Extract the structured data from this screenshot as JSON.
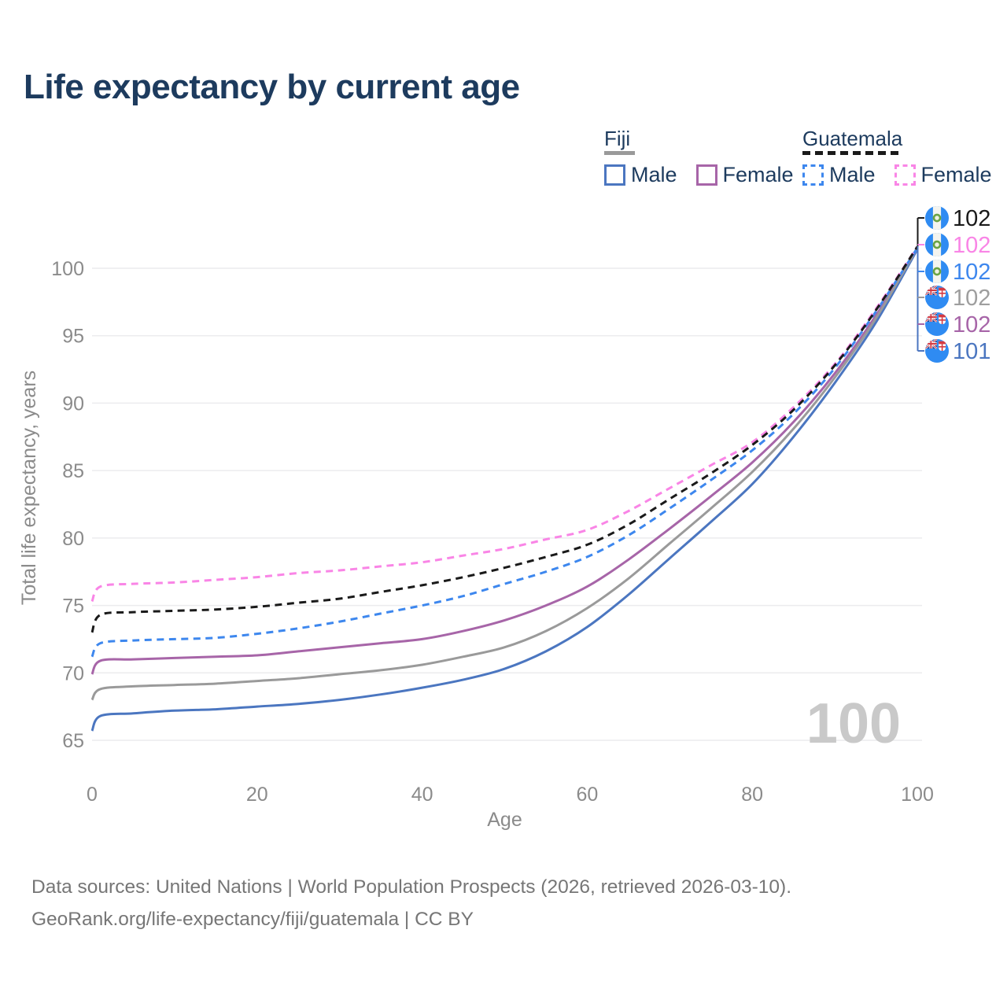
{
  "title": "Life expectancy by current age",
  "legend": {
    "fiji": {
      "name": "Fiji",
      "male": "Male",
      "female": "Female"
    },
    "guatemala": {
      "name": "Guatemala",
      "male": "Male",
      "female": "Female"
    }
  },
  "watermark": "100",
  "footer": {
    "line1": "Data sources: United Nations | World Population Prospects (2026, retrieved 2026-03-10).",
    "line2": "GeoRank.org/life-expectancy/fiji/guatemala | CC BY"
  },
  "colors": {
    "title_text": "#1d3b5e",
    "axis_text": "#8b8b8b",
    "gridline": "#ececee",
    "watermark": "#c9c9c9",
    "footer_text": "#767676",
    "flag_blue": "#2f8bf2",
    "flag_red": "#d43a42",
    "flag_navy": "#27408f",
    "flag_green": "#6aa344"
  },
  "chart_data": {
    "type": "line",
    "title": "Life expectancy by current age",
    "xlabel": "Age",
    "ylabel": "Total life expectancy, years",
    "xlim": [
      0,
      100
    ],
    "ylim": [
      65,
      100
    ],
    "xticks": [
      0,
      20,
      40,
      60,
      80,
      100
    ],
    "yticks": [
      65,
      70,
      75,
      80,
      85,
      90,
      95,
      100
    ],
    "grid": "horizontal",
    "legend_position": "top-right",
    "ages": [
      0,
      1,
      5,
      10,
      15,
      20,
      25,
      30,
      35,
      40,
      45,
      50,
      55,
      60,
      65,
      70,
      75,
      80,
      85,
      90,
      95,
      100
    ],
    "series": [
      {
        "name": "Guatemala Both sexes",
        "country": "Guatemala",
        "sex": "Both",
        "color": "#1a1a1a",
        "dashed": true,
        "flag": "guatemala",
        "end_label": "102",
        "label_color": "#1a1a1a",
        "values": [
          73.0,
          74.3,
          74.5,
          74.6,
          74.7,
          74.9,
          75.2,
          75.5,
          76.0,
          76.5,
          77.1,
          77.8,
          78.6,
          79.5,
          81.0,
          82.9,
          84.8,
          86.9,
          89.5,
          92.8,
          96.9,
          101.6
        ]
      },
      {
        "name": "Guatemala Female",
        "country": "Guatemala",
        "sex": "Female",
        "color": "#f985e6",
        "dashed": true,
        "flag": "guatemala",
        "end_label": "102",
        "label_color": "#f985e6",
        "values": [
          75.3,
          76.4,
          76.6,
          76.7,
          76.9,
          77.1,
          77.4,
          77.6,
          77.9,
          78.2,
          78.7,
          79.2,
          79.9,
          80.6,
          82.0,
          83.7,
          85.4,
          87.1,
          89.7,
          92.9,
          97.0,
          101.6
        ]
      },
      {
        "name": "Guatemala Male",
        "country": "Guatemala",
        "sex": "Male",
        "color": "#3d87ee",
        "dashed": true,
        "flag": "guatemala",
        "end_label": "102",
        "label_color": "#3d87ee",
        "values": [
          71.2,
          72.2,
          72.4,
          72.5,
          72.6,
          72.9,
          73.3,
          73.8,
          74.4,
          75.0,
          75.7,
          76.6,
          77.5,
          78.6,
          80.2,
          82.2,
          84.3,
          86.5,
          89.2,
          92.6,
          96.8,
          101.5
        ]
      },
      {
        "name": "Fiji Both sexes",
        "country": "Fiji",
        "sex": "Both",
        "color": "#9a9a9a",
        "dashed": false,
        "flag": "fiji",
        "end_label": "102",
        "label_color": "#9e9e9e",
        "values": [
          68.0,
          68.8,
          69.0,
          69.1,
          69.2,
          69.4,
          69.6,
          69.9,
          70.2,
          70.6,
          71.2,
          71.9,
          73.1,
          74.8,
          77.0,
          79.6,
          82.2,
          84.9,
          88.1,
          91.9,
          96.3,
          101.52
        ]
      },
      {
        "name": "Fiji Female",
        "country": "Fiji",
        "sex": "Female",
        "color": "#a765a8",
        "dashed": false,
        "flag": "fiji",
        "end_label": "102",
        "label_color": "#a765a8",
        "values": [
          69.9,
          70.9,
          71.0,
          71.1,
          71.2,
          71.3,
          71.6,
          71.9,
          72.2,
          72.5,
          73.1,
          73.9,
          75.0,
          76.4,
          78.4,
          80.7,
          83.1,
          85.6,
          88.6,
          92.2,
          96.5,
          101.5
        ]
      },
      {
        "name": "Fiji Male",
        "country": "Fiji",
        "sex": "Male",
        "color": "#4b76c0",
        "dashed": false,
        "flag": "fiji",
        "end_label": "101",
        "label_color": "#4b76c0",
        "values": [
          65.7,
          66.8,
          67.0,
          67.2,
          67.3,
          67.5,
          67.7,
          68.0,
          68.4,
          68.9,
          69.5,
          70.3,
          71.6,
          73.4,
          75.8,
          78.5,
          81.2,
          84.0,
          87.5,
          91.5,
          96.0,
          101.4
        ]
      }
    ]
  }
}
